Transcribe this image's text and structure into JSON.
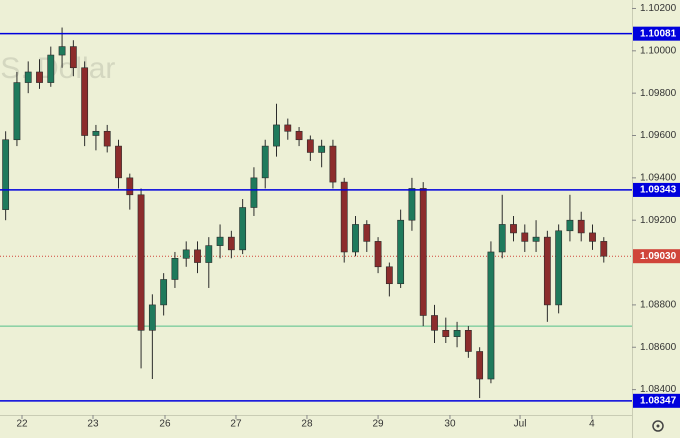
{
  "chart_data": {
    "type": "candlestick",
    "watermark": ".S. Dollar",
    "x": [
      0,
      1,
      2,
      3,
      4,
      5,
      6,
      7,
      8,
      9,
      10,
      11,
      12,
      13,
      14,
      15,
      16,
      17,
      18,
      19,
      20,
      21,
      22,
      23,
      24,
      25,
      26,
      27,
      28,
      29,
      30,
      31,
      32,
      33,
      34,
      35,
      36,
      37,
      38,
      39,
      40,
      41,
      42,
      43,
      44,
      45,
      46,
      47,
      48,
      49,
      50,
      51,
      52,
      53
    ],
    "open": [
      1.0925,
      1.0958,
      1.0985,
      1.099,
      1.0985,
      1.0998,
      1.1002,
      1.0992,
      1.096,
      1.0962,
      1.0955,
      1.094,
      1.0932,
      1.0868,
      1.088,
      1.0892,
      1.0902,
      1.0906,
      1.09,
      1.0908,
      1.0912,
      1.0906,
      1.0926,
      1.094,
      1.0955,
      1.0965,
      1.0962,
      1.0958,
      1.0952,
      1.0955,
      1.0938,
      1.0905,
      1.0918,
      1.091,
      1.0898,
      1.089,
      1.092,
      1.0935,
      1.0875,
      1.0868,
      1.0865,
      1.0868,
      1.0858,
      1.0845,
      1.0905,
      1.0918,
      1.0914,
      1.091,
      1.0912,
      1.088,
      1.0915,
      1.092,
      1.0914,
      1.091
    ],
    "high": [
      1.0962,
      1.099,
      1.0995,
      1.0996,
      1.1002,
      1.1011,
      1.1005,
      1.0995,
      1.0965,
      1.0965,
      1.0958,
      1.0942,
      1.0935,
      1.0885,
      1.0895,
      1.0905,
      1.091,
      1.091,
      1.0912,
      1.0918,
      1.0915,
      1.093,
      1.0945,
      1.0958,
      1.0975,
      1.0968,
      1.0964,
      1.096,
      1.0958,
      1.0958,
      1.094,
      1.0922,
      1.092,
      1.0912,
      1.09,
      1.0925,
      1.094,
      1.0938,
      1.088,
      1.0874,
      1.0872,
      1.087,
      1.086,
      1.091,
      1.0932,
      1.0922,
      1.0918,
      1.092,
      1.0915,
      1.0918,
      1.0932,
      1.0924,
      1.0918,
      1.0912
    ],
    "low": [
      1.092,
      1.0955,
      1.098,
      1.0982,
      1.0983,
      1.0992,
      1.0988,
      1.0955,
      1.0953,
      1.0952,
      1.0935,
      1.0925,
      1.085,
      1.0845,
      1.0875,
      1.0888,
      1.0898,
      1.0895,
      1.0888,
      1.0902,
      1.0902,
      1.0904,
      1.0922,
      1.0935,
      1.095,
      1.0958,
      1.0955,
      1.0948,
      1.0945,
      1.0935,
      1.09,
      1.0903,
      1.0905,
      1.0895,
      1.0884,
      1.0888,
      1.0915,
      1.087,
      1.0862,
      1.0862,
      1.086,
      1.0855,
      1.0836,
      1.0843,
      1.0902,
      1.091,
      1.0905,
      1.0905,
      1.0872,
      1.0876,
      1.091,
      1.091,
      1.0906,
      1.09
    ],
    "close": [
      1.0958,
      1.0985,
      1.099,
      1.0985,
      1.0998,
      1.1002,
      1.0992,
      1.096,
      1.0962,
      1.0955,
      1.094,
      1.0932,
      1.0868,
      1.088,
      1.0892,
      1.0902,
      1.0906,
      1.09,
      1.0908,
      1.0912,
      1.0906,
      1.0926,
      1.094,
      1.0955,
      1.0965,
      1.0962,
      1.0958,
      1.0952,
      1.0955,
      1.0938,
      1.0905,
      1.0918,
      1.091,
      1.0898,
      1.089,
      1.092,
      1.0935,
      1.0875,
      1.0868,
      1.0865,
      1.0868,
      1.0858,
      1.0845,
      1.0905,
      1.0918,
      1.0914,
      1.091,
      1.0912,
      1.088,
      1.0915,
      1.092,
      1.0914,
      1.091,
      1.0903
    ],
    "up_color": "#1f7a5c",
    "down_color": "#8c2c2c",
    "xlim": [
      -0.5,
      55.5
    ],
    "xticks": [
      {
        "value": 1.45,
        "label": "22"
      },
      {
        "value": 7.74,
        "label": "23"
      },
      {
        "value": 14.12,
        "label": "26"
      },
      {
        "value": 20.41,
        "label": "27"
      },
      {
        "value": 26.7,
        "label": "28"
      },
      {
        "value": 33.0,
        "label": "29"
      },
      {
        "value": 39.37,
        "label": "30"
      },
      {
        "value": 45.58,
        "label": "Jul"
      },
      {
        "value": 51.95,
        "label": "4"
      }
    ],
    "ylim": [
      1.0828,
      1.1024
    ],
    "yticks": [
      {
        "value": 1.102,
        "label": "1.10200"
      },
      {
        "value": 1.1,
        "label": "1.10000"
      },
      {
        "value": 1.098,
        "label": "1.09800"
      },
      {
        "value": 1.096,
        "label": "1.09600"
      },
      {
        "value": 1.094,
        "label": "1.09400"
      },
      {
        "value": 1.092,
        "label": "1.09200"
      },
      {
        "value": 1.088,
        "label": "1.08800"
      },
      {
        "value": 1.086,
        "label": "1.08600"
      },
      {
        "value": 1.084,
        "label": "1.08400"
      }
    ],
    "levels": [
      {
        "value": 1.10081,
        "label": "1.10081",
        "color": "#0000dd"
      },
      {
        "value": 1.09343,
        "label": "1.09343",
        "color": "#0000dd"
      },
      {
        "value": 1.08347,
        "label": "1.08347",
        "color": "#0000dd"
      }
    ],
    "support_line": {
      "value": 1.087,
      "color": "#55c08a"
    },
    "price_line": {
      "value": 1.0903,
      "label": "1.09030",
      "color": "#d0453a"
    }
  }
}
